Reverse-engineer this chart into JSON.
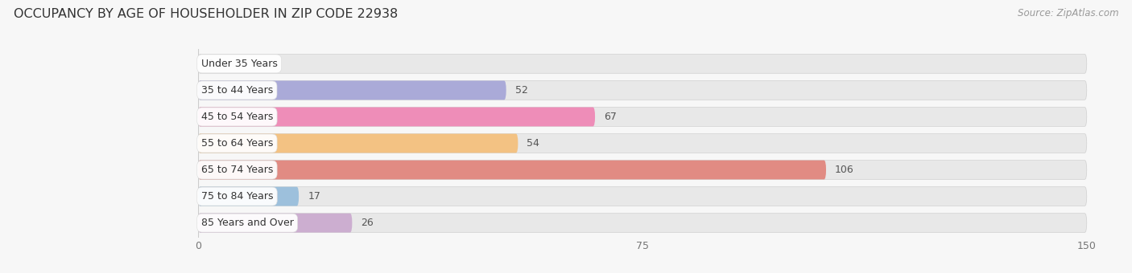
{
  "title": "OCCUPANCY BY AGE OF HOUSEHOLDER IN ZIP CODE 22938",
  "source": "Source: ZipAtlas.com",
  "categories": [
    "Under 35 Years",
    "35 to 44 Years",
    "45 to 54 Years",
    "55 to 64 Years",
    "65 to 74 Years",
    "75 to 84 Years",
    "85 Years and Over"
  ],
  "values": [
    0,
    52,
    67,
    54,
    106,
    17,
    26
  ],
  "bar_colors": [
    "#6ecec8",
    "#9f9fd6",
    "#f07db0",
    "#f5bc72",
    "#e07b72",
    "#90bada",
    "#c8a4cc"
  ],
  "xlim_data": [
    0,
    150
  ],
  "xticks": [
    0,
    75,
    150
  ],
  "background_color": "#f7f7f7",
  "row_bg_color": "#e8e8e8",
  "label_pill_color": "#ffffff",
  "title_fontsize": 11.5,
  "label_fontsize": 9,
  "value_fontsize": 9,
  "source_fontsize": 8.5,
  "bar_height": 0.72,
  "bar_alpha": 0.85
}
